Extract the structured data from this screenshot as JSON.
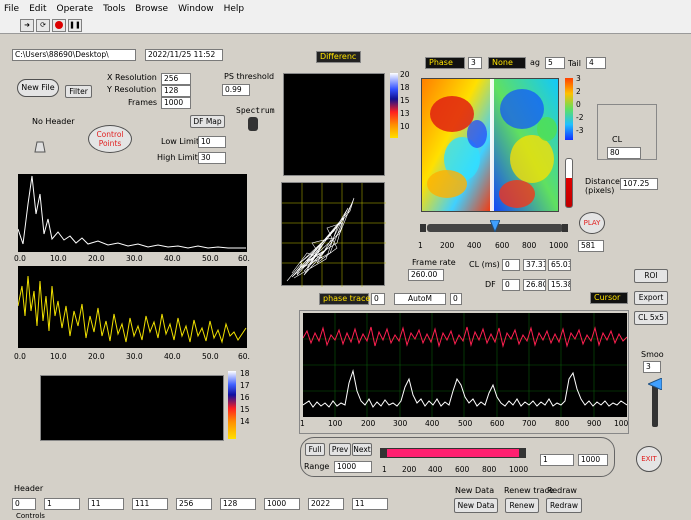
{
  "menu": {
    "file": "File",
    "edit": "Edit",
    "operate": "Operate",
    "tools": "Tools",
    "browse": "Browse",
    "window": "Window",
    "help": "Help"
  },
  "top": {
    "path": "C:\\Users\\88690\\Desktop\\",
    "datetime": "2022/11/25 11:52"
  },
  "file_controls": {
    "new_file": "New File",
    "filter": "Filter",
    "x_res_label": "X Resolution",
    "x_res": "256",
    "y_res_label": "Y Resolution",
    "y_res": "128",
    "frames_label": "Frames",
    "frames": "1000",
    "ps_threshold_label": "PS threshold",
    "ps_threshold": "0.99",
    "spectrum_label": "Spectrum",
    "no_header": "No Header",
    "control_points": "Control Points",
    "df_map": "DF Map",
    "low_limit_label": "Low Limit",
    "low_limit": "10",
    "high_limit_label": "High Limit",
    "high_limit": "30"
  },
  "spectrum_plot": {
    "ticks": [
      "0.0",
      "10.0",
      "20.0",
      "30.0",
      "40.0",
      "50.0",
      "60."
    ]
  },
  "trace_plot": {
    "ticks": [
      "0.0",
      "10.0",
      "20.0",
      "30.0",
      "40.0",
      "50.0",
      "60."
    ]
  },
  "diff": {
    "selector": "Differenc",
    "scale": [
      "20",
      "18",
      "15",
      "13",
      "10"
    ]
  },
  "df_scale": [
    "18",
    "17",
    "16",
    "15",
    "14"
  ],
  "phase": {
    "selector": "Phase",
    "n1": "3",
    "none": "None",
    "avg_label": "ag",
    "avg": "5",
    "tail_label": "Tail",
    "tail": "4",
    "scale": [
      "3",
      "2",
      "0",
      "-2",
      "-3"
    ]
  },
  "cl_box": {
    "label": "CL",
    "value": "80"
  },
  "distance": {
    "label": "Distance (pixels)",
    "value": "107.25"
  },
  "slider": {
    "ticks": [
      "1",
      "200",
      "400",
      "600",
      "800",
      "1000"
    ],
    "value": "581",
    "position_fraction": 0.5,
    "play": "PLAY"
  },
  "stats": {
    "frame_rate_label": "Frame rate",
    "frame_rate": "260.00",
    "cl_label": "CL (ms)",
    "cl_spin": "0",
    "cl_v1": "37.31",
    "cl_v2": "65.03",
    "df_label": "DF",
    "df_spin": "0",
    "df_v1": "26.80",
    "df_v2": "15.38"
  },
  "right_buttons": {
    "roi": "ROI",
    "export": "Export",
    "cl5x5": "CL 5x5",
    "cursor": "Cursor",
    "smoo_label": "Smoo",
    "smoo": "3",
    "exit": "EXIT"
  },
  "trace_ctrl": {
    "phase_trace": "phase trace",
    "n1": "0",
    "auto": "AutoM",
    "n2": "0"
  },
  "waveform": {
    "ticks": [
      "1",
      "100",
      "200",
      "300",
      "400",
      "500",
      "600",
      "700",
      "800",
      "900",
      "100"
    ]
  },
  "nav": {
    "full": "Full",
    "prev": "Prev",
    "next": "Next",
    "range_label": "Range",
    "range": "1000",
    "ticks": [
      "1",
      "200",
      "400",
      "600",
      "800",
      "1000"
    ],
    "start": "1",
    "end": "1000"
  },
  "header": {
    "label": "Header",
    "values": [
      "0",
      "1",
      "11",
      "111",
      "256",
      "128",
      "1000",
      "2022",
      "11"
    ]
  },
  "bottom": {
    "new_data_label": "New Data",
    "new_data": "New Data",
    "renew_label": "Renew trace",
    "renew": "Renew",
    "redraw_label": "Redraw",
    "redraw": "Redraw",
    "controls": "Controls"
  }
}
